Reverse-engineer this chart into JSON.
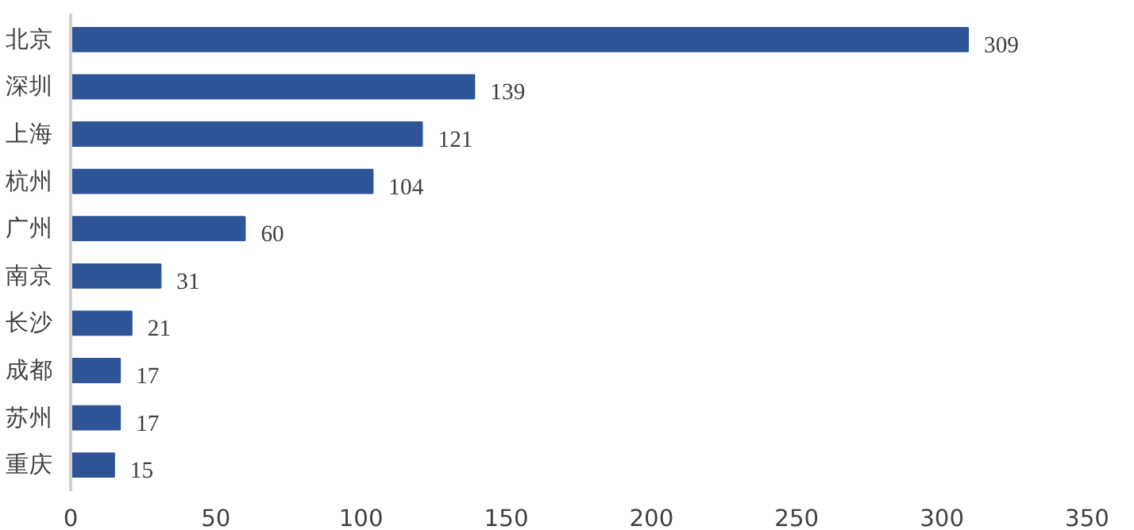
{
  "chart_data": {
    "type": "bar",
    "orientation": "horizontal",
    "categories": [
      "北京",
      "深圳",
      "上海",
      "杭州",
      "广州",
      "南京",
      "长沙",
      "成都",
      "苏州",
      "重庆"
    ],
    "values": [
      309,
      139,
      121,
      104,
      60,
      31,
      21,
      17,
      17,
      15
    ],
    "color": "#2e5597",
    "xlim": [
      0,
      350
    ],
    "xticks": [
      0,
      50,
      100,
      150,
      200,
      250,
      300,
      350
    ],
    "data_labels": true
  }
}
